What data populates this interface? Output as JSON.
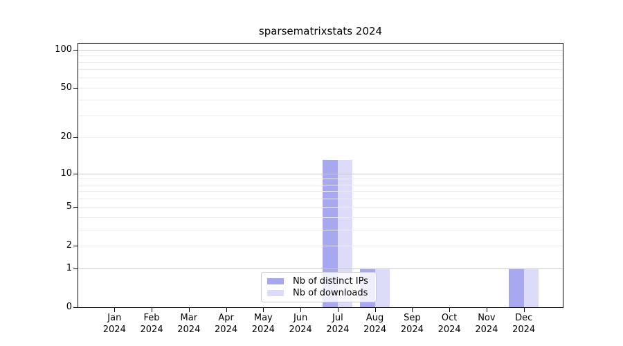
{
  "chart_data": {
    "type": "bar",
    "title": "sparsematrixstats 2024",
    "x_months": [
      "Jan",
      "Feb",
      "Mar",
      "Apr",
      "May",
      "Jun",
      "Jul",
      "Aug",
      "Sep",
      "Oct",
      "Nov",
      "Dec"
    ],
    "x_year": "2024",
    "series": [
      {
        "name": "Nb of distinct IPs",
        "color": "#a8a8f0",
        "values": [
          0,
          0,
          0,
          0,
          0,
          0,
          13,
          1,
          0,
          0,
          0,
          1
        ]
      },
      {
        "name": "Nb of downloads",
        "color": "#dcdcf8",
        "values": [
          0,
          0,
          0,
          0,
          0,
          0,
          13,
          1,
          0,
          0,
          0,
          1
        ]
      }
    ],
    "y_scale": "log1p",
    "ylim": [
      0,
      112
    ],
    "y_tick_values": [
      0,
      1,
      2,
      5,
      10,
      20,
      50,
      100
    ],
    "y_major_gridlines": [
      1,
      10,
      100
    ],
    "y_minor_gridlines": [
      2,
      3,
      4,
      5,
      6,
      7,
      8,
      9,
      20,
      30,
      40,
      50,
      60,
      70,
      80,
      90
    ],
    "grid_color_major": "#c8c8c8",
    "grid_color_minor": "#ececec",
    "legend_position": "lower-center",
    "xlabel": "",
    "ylabel": ""
  }
}
